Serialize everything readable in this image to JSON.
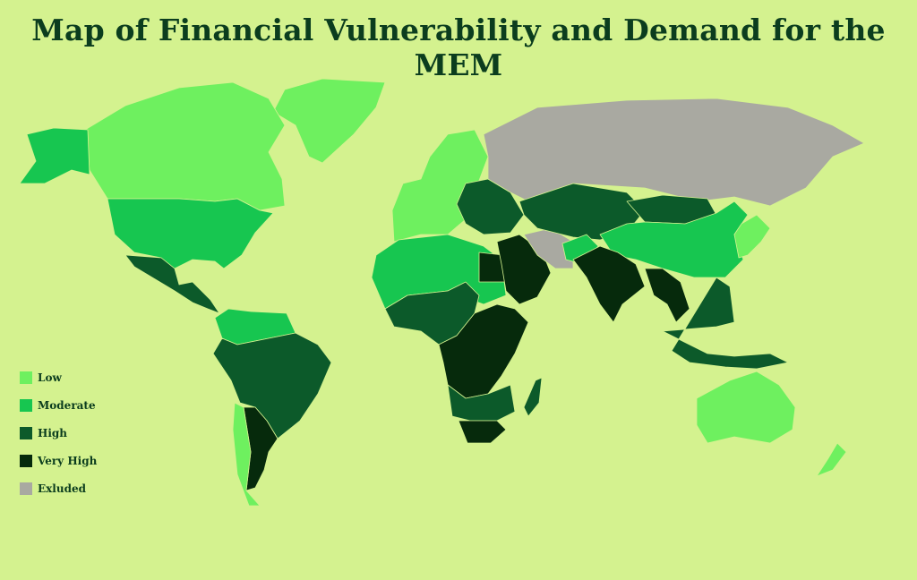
{
  "title": "Map of Financial Vulnerability and Demand for the MEM",
  "colors": {
    "background": "#d4f28f",
    "low": "#6ef05f",
    "moderate": "#17c650",
    "high": "#0c5a2a",
    "very_high": "#062a0c",
    "excluded": "#a9a9a1"
  },
  "legend": [
    {
      "key": "low",
      "label": "Low"
    },
    {
      "key": "moderate",
      "label": "Moderate"
    },
    {
      "key": "high",
      "label": "High"
    },
    {
      "key": "very_high",
      "label": "Very High"
    },
    {
      "key": "excluded",
      "label": "Exluded"
    }
  ],
  "regions": [
    {
      "name": "Greenland",
      "level": "low"
    },
    {
      "name": "Canada",
      "level": "low"
    },
    {
      "name": "Alaska",
      "level": "moderate"
    },
    {
      "name": "United States",
      "level": "moderate"
    },
    {
      "name": "Mexico & Central America",
      "level": "high"
    },
    {
      "name": "Colombia & Venezuela",
      "level": "moderate"
    },
    {
      "name": "Brazil & Andes",
      "level": "high"
    },
    {
      "name": "Argentina",
      "level": "very_high"
    },
    {
      "name": "Chile",
      "level": "low"
    },
    {
      "name": "Western Europe",
      "level": "low"
    },
    {
      "name": "Eastern Europe & Turkey",
      "level": "high"
    },
    {
      "name": "Russia",
      "level": "excluded"
    },
    {
      "name": "North Africa",
      "level": "moderate"
    },
    {
      "name": "Egypt",
      "level": "very_high"
    },
    {
      "name": "West & Central Africa",
      "level": "high"
    },
    {
      "name": "Central & East Africa",
      "level": "very_high"
    },
    {
      "name": "Southern Africa",
      "level": "high"
    },
    {
      "name": "South Africa",
      "level": "very_high"
    },
    {
      "name": "Madagascar",
      "level": "high"
    },
    {
      "name": "Saudi Arabia",
      "level": "very_high"
    },
    {
      "name": "Iran",
      "level": "excluded"
    },
    {
      "name": "Central Asia",
      "level": "high"
    },
    {
      "name": "Mongolia",
      "level": "high"
    },
    {
      "name": "China",
      "level": "moderate"
    },
    {
      "name": "Afghanistan",
      "level": "moderate"
    },
    {
      "name": "India",
      "level": "very_high"
    },
    {
      "name": "Southeast Asia",
      "level": "very_high"
    },
    {
      "name": "Indonesia & Philippines",
      "level": "high"
    },
    {
      "name": "Japan & Korea",
      "level": "low"
    },
    {
      "name": "Australia",
      "level": "low"
    },
    {
      "name": "New Zealand",
      "level": "low"
    }
  ]
}
